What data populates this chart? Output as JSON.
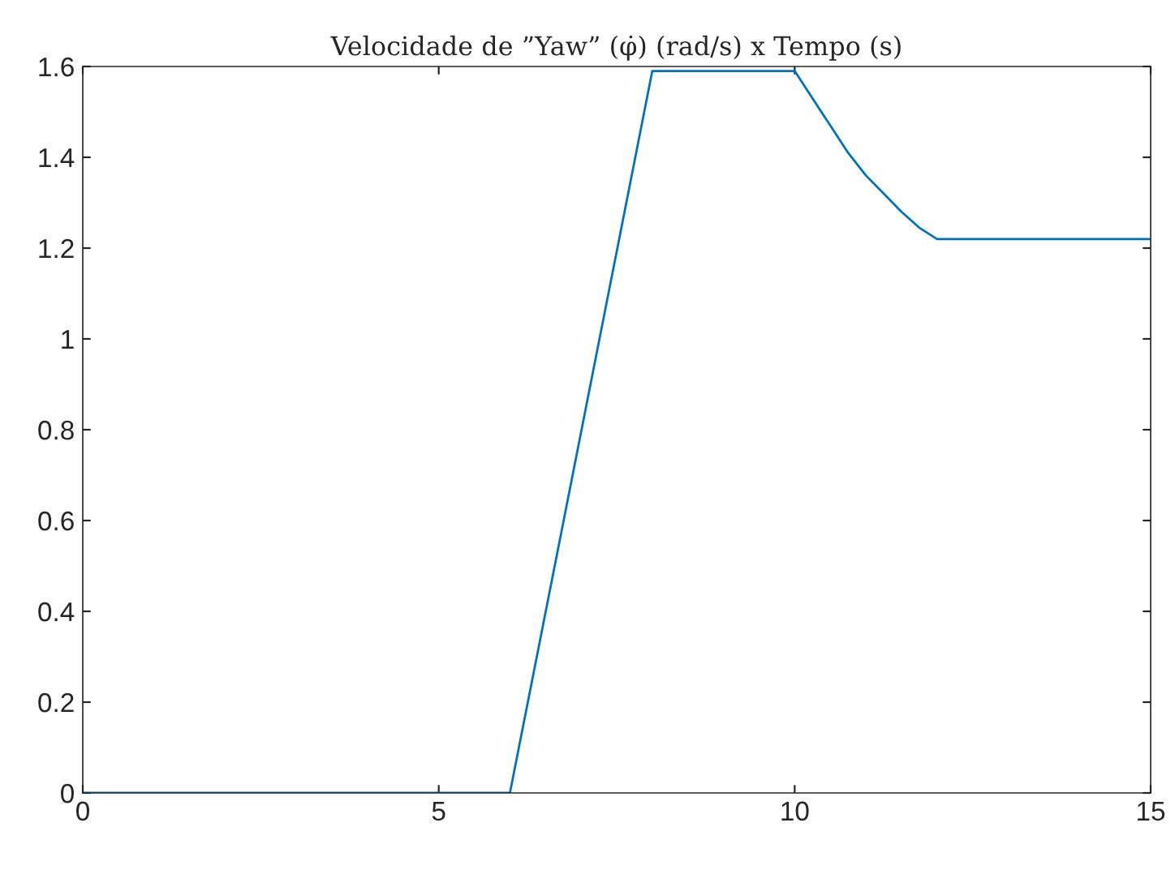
{
  "chart_data": {
    "type": "line",
    "title": "Velocidade de ”Yaw” (φ̇) (rad/s) x Tempo (s)",
    "series": [
      {
        "color": "#0072bd",
        "x": [
          0,
          6,
          8,
          10,
          10.25,
          10.5,
          10.75,
          11,
          11.25,
          11.5,
          11.75,
          12,
          15
        ],
        "values": [
          0,
          0,
          1.59,
          1.59,
          1.53,
          1.47,
          1.41,
          1.36,
          1.32,
          1.28,
          1.245,
          1.22,
          1.22
        ]
      }
    ],
    "xlim": [
      0,
      15
    ],
    "xticks": [
      0,
      5,
      10,
      15
    ],
    "ylim": [
      0,
      1.6
    ],
    "yticks": [
      0,
      0.2,
      0.4,
      0.6,
      0.8,
      1,
      1.2,
      1.4,
      1.6
    ],
    "grid": false,
    "legend": false,
    "marker": "none",
    "line_style": "solid"
  }
}
